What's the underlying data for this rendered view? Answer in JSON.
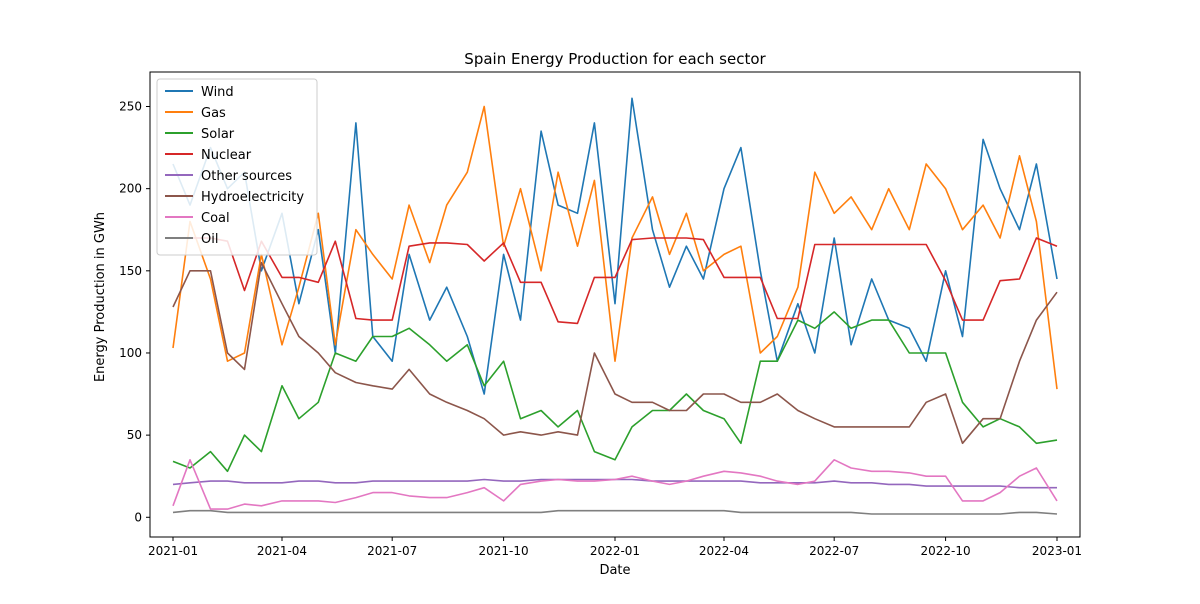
{
  "chart_data": {
    "type": "line",
    "title": "Spain Energy Production for each sector",
    "xlabel": "Date",
    "ylabel": "Energy Production in GWh",
    "xlim": [
      "2020-12-13",
      "2023-01-20"
    ],
    "ylim": [
      -12,
      271
    ],
    "grid": false,
    "legend_position": "top-left",
    "x_ticks": [
      {
        "date": "2021-01-01",
        "label": "2021-01"
      },
      {
        "date": "2021-04-01",
        "label": "2021-04"
      },
      {
        "date": "2021-07-01",
        "label": "2021-07"
      },
      {
        "date": "2021-10-01",
        "label": "2021-10"
      },
      {
        "date": "2022-01-01",
        "label": "2022-01"
      },
      {
        "date": "2022-04-01",
        "label": "2022-04"
      },
      {
        "date": "2022-07-01",
        "label": "2022-07"
      },
      {
        "date": "2022-10-01",
        "label": "2022-10"
      },
      {
        "date": "2023-01-01",
        "label": "2023-01"
      }
    ],
    "y_ticks": [
      0,
      50,
      100,
      150,
      200,
      250
    ],
    "x": [
      "2021-01-01",
      "2021-01-15",
      "2021-02-01",
      "2021-02-15",
      "2021-03-01",
      "2021-03-15",
      "2021-04-01",
      "2021-04-15",
      "2021-05-01",
      "2021-05-15",
      "2021-06-01",
      "2021-06-15",
      "2021-07-01",
      "2021-07-15",
      "2021-08-01",
      "2021-08-15",
      "2021-09-01",
      "2021-09-15",
      "2021-10-01",
      "2021-10-15",
      "2021-11-01",
      "2021-11-15",
      "2021-12-01",
      "2021-12-15",
      "2022-01-01",
      "2022-01-15",
      "2022-02-01",
      "2022-02-15",
      "2022-03-01",
      "2022-03-15",
      "2022-04-01",
      "2022-04-15",
      "2022-05-01",
      "2022-05-15",
      "2022-06-01",
      "2022-06-15",
      "2022-07-01",
      "2022-07-15",
      "2022-08-01",
      "2022-08-15",
      "2022-09-01",
      "2022-09-15",
      "2022-10-01",
      "2022-10-15",
      "2022-11-01",
      "2022-11-15",
      "2022-12-01",
      "2022-12-15",
      "2023-01-01"
    ],
    "series": [
      {
        "name": "Wind",
        "color": "#1f77b4",
        "values": [
          215,
          190,
          225,
          200,
          210,
          150,
          185,
          130,
          175,
          100,
          240,
          110,
          95,
          160,
          120,
          140,
          110,
          75,
          160,
          120,
          235,
          190,
          185,
          240,
          130,
          255,
          175,
          140,
          165,
          145,
          200,
          225,
          150,
          95,
          130,
          100,
          170,
          105,
          145,
          120,
          115,
          95,
          150,
          110,
          230,
          200,
          175,
          215,
          145
        ]
      },
      {
        "name": "Gas",
        "color": "#ff7f0e",
        "values": [
          103,
          180,
          145,
          95,
          100,
          160,
          105,
          140,
          185,
          105,
          175,
          160,
          145,
          190,
          155,
          190,
          210,
          250,
          165,
          200,
          150,
          210,
          165,
          205,
          95,
          170,
          195,
          160,
          185,
          150,
          160,
          165,
          100,
          110,
          140,
          210,
          185,
          195,
          175,
          200,
          175,
          215,
          200,
          175,
          190,
          170,
          220,
          180,
          78
        ]
      },
      {
        "name": "Solar",
        "color": "#2ca02c",
        "values": [
          34,
          30,
          40,
          28,
          50,
          40,
          80,
          60,
          70,
          100,
          95,
          110,
          110,
          115,
          105,
          95,
          105,
          80,
          95,
          60,
          65,
          55,
          65,
          40,
          35,
          55,
          65,
          65,
          75,
          65,
          60,
          45,
          95,
          95,
          120,
          115,
          125,
          115,
          120,
          120,
          100,
          100,
          100,
          70,
          55,
          60,
          55,
          45,
          47
        ]
      },
      {
        "name": "Nuclear",
        "color": "#d62728",
        "values": [
          170,
          170,
          170,
          168,
          138,
          168,
          146,
          146,
          143,
          168,
          121,
          120,
          120,
          165,
          167,
          167,
          166,
          156,
          167,
          143,
          143,
          119,
          118,
          146,
          146,
          169,
          170,
          170,
          170,
          169,
          146,
          146,
          146,
          121,
          121,
          166,
          166,
          166,
          166,
          166,
          166,
          166,
          144,
          120,
          120,
          144,
          145,
          170,
          165
        ]
      },
      {
        "name": "Other sources",
        "color": "#9467bd",
        "values": [
          20,
          21,
          22,
          22,
          21,
          21,
          21,
          22,
          22,
          21,
          21,
          22,
          22,
          22,
          22,
          22,
          22,
          23,
          22,
          22,
          23,
          23,
          23,
          23,
          23,
          23,
          22,
          22,
          22,
          22,
          22,
          22,
          21,
          21,
          21,
          21,
          22,
          21,
          21,
          20,
          20,
          19,
          19,
          19,
          19,
          19,
          18,
          18,
          18
        ]
      },
      {
        "name": "Hydroelectricity",
        "color": "#8c564b",
        "values": [
          128,
          150,
          150,
          100,
          90,
          155,
          130,
          110,
          100,
          88,
          82,
          80,
          78,
          90,
          75,
          70,
          65,
          60,
          50,
          52,
          50,
          52,
          50,
          100,
          75,
          70,
          70,
          65,
          65,
          75,
          75,
          70,
          70,
          75,
          65,
          60,
          55,
          55,
          55,
          55,
          55,
          70,
          75,
          45,
          60,
          60,
          95,
          120,
          137
        ]
      },
      {
        "name": "Coal",
        "color": "#e377c2",
        "values": [
          7,
          35,
          5,
          5,
          8,
          7,
          10,
          10,
          10,
          9,
          12,
          15,
          15,
          13,
          12,
          12,
          15,
          18,
          10,
          20,
          22,
          23,
          22,
          22,
          23,
          25,
          22,
          20,
          22,
          25,
          28,
          27,
          25,
          22,
          20,
          22,
          35,
          30,
          28,
          28,
          27,
          25,
          25,
          10,
          10,
          15,
          25,
          30,
          10
        ]
      },
      {
        "name": "Oil",
        "color": "#7f7f7f",
        "values": [
          3,
          4,
          4,
          3,
          3,
          3,
          3,
          3,
          3,
          3,
          3,
          3,
          3,
          3,
          3,
          3,
          3,
          3,
          3,
          3,
          3,
          4,
          4,
          4,
          4,
          4,
          4,
          4,
          4,
          4,
          4,
          3,
          3,
          3,
          3,
          3,
          3,
          3,
          2,
          2,
          2,
          2,
          2,
          2,
          2,
          2,
          3,
          3,
          2
        ]
      }
    ]
  }
}
